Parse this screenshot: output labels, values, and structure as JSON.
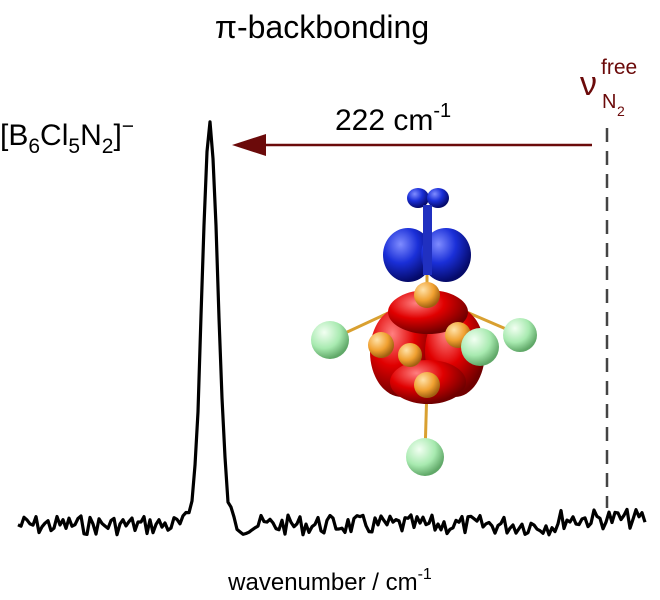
{
  "title": "π-backbonding",
  "species_label": {
    "open": "[B",
    "n_b": "6",
    "cl": "Cl",
    "n_cl": "5",
    "n": "N",
    "n_n": "2",
    "close": "]",
    "charge": "−"
  },
  "shift_label": {
    "text": "222 cm",
    "exponent": "-1"
  },
  "reference_label": {
    "symbol": "ν",
    "superscript": "free",
    "subscript": "N",
    "subsubscript": "2"
  },
  "x_axis_label": {
    "text": "wavenumber / cm",
    "exponent": "-1"
  }
}
